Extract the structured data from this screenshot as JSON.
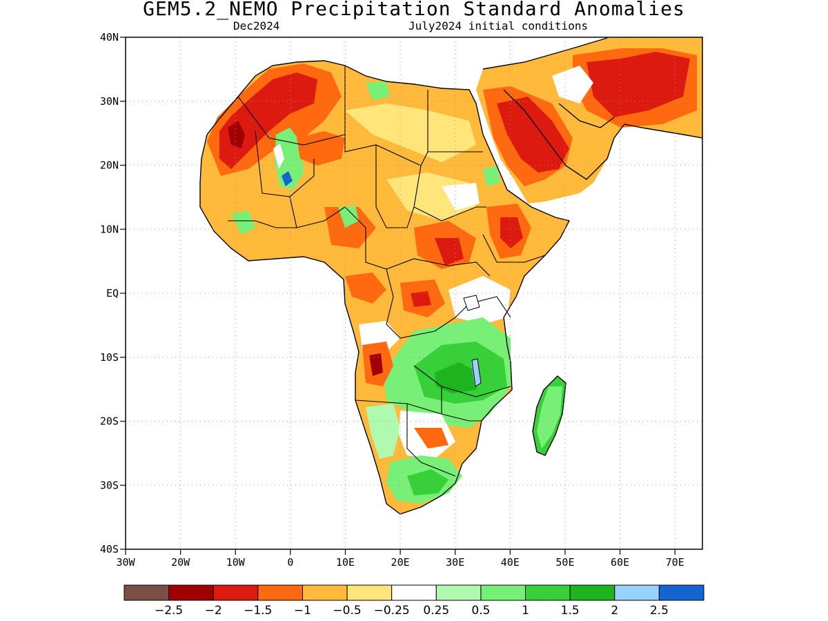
{
  "title": "GEM5.2_NEMO Precipitation Standard Anomalies",
  "subtitle_left": "Dec2024",
  "subtitle_right": "July2024 initial conditions",
  "map": {
    "lon_range": [
      -30,
      75
    ],
    "lat_range": [
      -40,
      40
    ],
    "grid": "dotted",
    "lat_ticks": [
      {
        "lat": 40,
        "label": "40N"
      },
      {
        "lat": 30,
        "label": "30N"
      },
      {
        "lat": 20,
        "label": "20N"
      },
      {
        "lat": 10,
        "label": "10N"
      },
      {
        "lat": 0,
        "label": "EQ"
      },
      {
        "lat": -10,
        "label": "10S"
      },
      {
        "lat": -20,
        "label": "20S"
      },
      {
        "lat": -30,
        "label": "30S"
      },
      {
        "lat": -40,
        "label": "40S"
      }
    ],
    "lon_ticks": [
      {
        "lon": -30,
        "label": "30W"
      },
      {
        "lon": -20,
        "label": "20W"
      },
      {
        "lon": -10,
        "label": "10W"
      },
      {
        "lon": 0,
        "label": "0"
      },
      {
        "lon": 10,
        "label": "10E"
      },
      {
        "lon": 20,
        "label": "20E"
      },
      {
        "lon": 30,
        "label": "30E"
      },
      {
        "lon": 40,
        "label": "40E"
      },
      {
        "lon": 50,
        "label": "50E"
      },
      {
        "lon": 60,
        "label": "60E"
      },
      {
        "lon": 70,
        "label": "70E"
      }
    ]
  },
  "colorbar": {
    "colors": [
      "#7a5044",
      "#a00000",
      "#dd1a10",
      "#ff6a10",
      "#ffba3c",
      "#ffe57a",
      "#ffffff",
      "#b0fab0",
      "#78f078",
      "#38d038",
      "#1eb41e",
      "#96d2fa",
      "#1464d2"
    ],
    "labels": [
      "−2.5",
      "−2",
      "−1.5",
      "−1",
      "−0.5",
      "−0.25",
      "0.25",
      "0.5",
      "1",
      "1.5",
      "2",
      "2.5"
    ]
  },
  "palette": {
    "brown": "#7a5044",
    "darkred": "#a00000",
    "red": "#dd1a10",
    "orange": "#ff6a10",
    "lightorange": "#ffba3c",
    "yellow": "#ffe57a",
    "white": "#ffffff",
    "lightgreen": "#b0fab0",
    "green": "#78f078",
    "midgreen": "#38d038",
    "darkgreen": "#1eb41e",
    "lightblue": "#96d2fa",
    "blue": "#1464d2"
  }
}
